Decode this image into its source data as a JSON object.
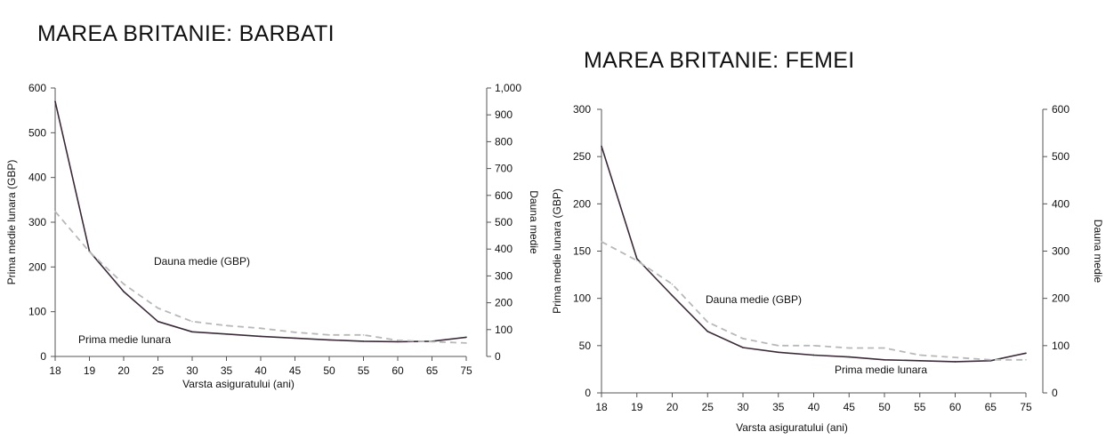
{
  "colors": {
    "premium": "#3a2a38",
    "claim": "#b8b8b8",
    "axis": "#555555"
  },
  "chart_data": [
    {
      "type": "line",
      "title": "MAREA BRITANIE: BARBATI",
      "xlabel": "Varsta asiguratului (ani)",
      "ylabel_left": "Prima medie lunara (GBP)",
      "ylabel_right": "Dauna medie",
      "x": [
        "18",
        "19",
        "20",
        "25",
        "30",
        "35",
        "40",
        "45",
        "50",
        "55",
        "60",
        "65",
        "75"
      ],
      "yticks_left": [
        "0",
        "100",
        "200",
        "300",
        "400",
        "500",
        "600"
      ],
      "yticks_right": [
        "0",
        "100",
        "200",
        "300",
        "400",
        "500",
        "600",
        "700",
        "800",
        "900",
        "1,000"
      ],
      "ylim_left": [
        0,
        600
      ],
      "ylim_right": [
        0,
        1000
      ],
      "annotations": {
        "claim": "Dauna medie (GBP)",
        "premium": "Prima medie lunara"
      },
      "series": [
        {
          "name": "Prima medie lunara",
          "axis": "left",
          "style": "solid",
          "values": [
            570,
            235,
            145,
            78,
            55,
            50,
            45,
            41,
            37,
            34,
            33,
            34,
            43
          ]
        },
        {
          "name": "Dauna medie (GBP)",
          "axis": "right",
          "style": "dashed",
          "values": [
            540,
            390,
            270,
            180,
            130,
            115,
            105,
            90,
            80,
            80,
            60,
            55,
            50
          ]
        }
      ]
    },
    {
      "type": "line",
      "title": "MAREA BRITANIE: FEMEI",
      "xlabel": "Varsta asiguratului (ani)",
      "ylabel_left": "Prima medie lunara (GBP)",
      "ylabel_right": "Dauna medie",
      "x": [
        "18",
        "19",
        "20",
        "25",
        "30",
        "35",
        "40",
        "45",
        "50",
        "55",
        "60",
        "65",
        "75"
      ],
      "yticks_left": [
        "0",
        "50",
        "100",
        "150",
        "200",
        "250",
        "300"
      ],
      "yticks_right": [
        "0",
        "100",
        "200",
        "300",
        "400",
        "500",
        "600"
      ],
      "ylim_left": [
        0,
        300
      ],
      "ylim_right": [
        0,
        600
      ],
      "annotations": {
        "claim": "Dauna medie (GBP)",
        "premium": "Prima medie lunara"
      },
      "series": [
        {
          "name": "Prima medie lunara",
          "axis": "left",
          "style": "solid",
          "values": [
            261,
            142,
            103,
            65,
            48,
            43,
            40,
            38,
            35,
            34,
            33,
            34,
            42
          ]
        },
        {
          "name": "Dauna medie (GBP)",
          "axis": "right",
          "style": "dashed",
          "values": [
            320,
            280,
            230,
            150,
            115,
            100,
            100,
            95,
            95,
            80,
            75,
            70,
            70
          ]
        }
      ]
    }
  ]
}
